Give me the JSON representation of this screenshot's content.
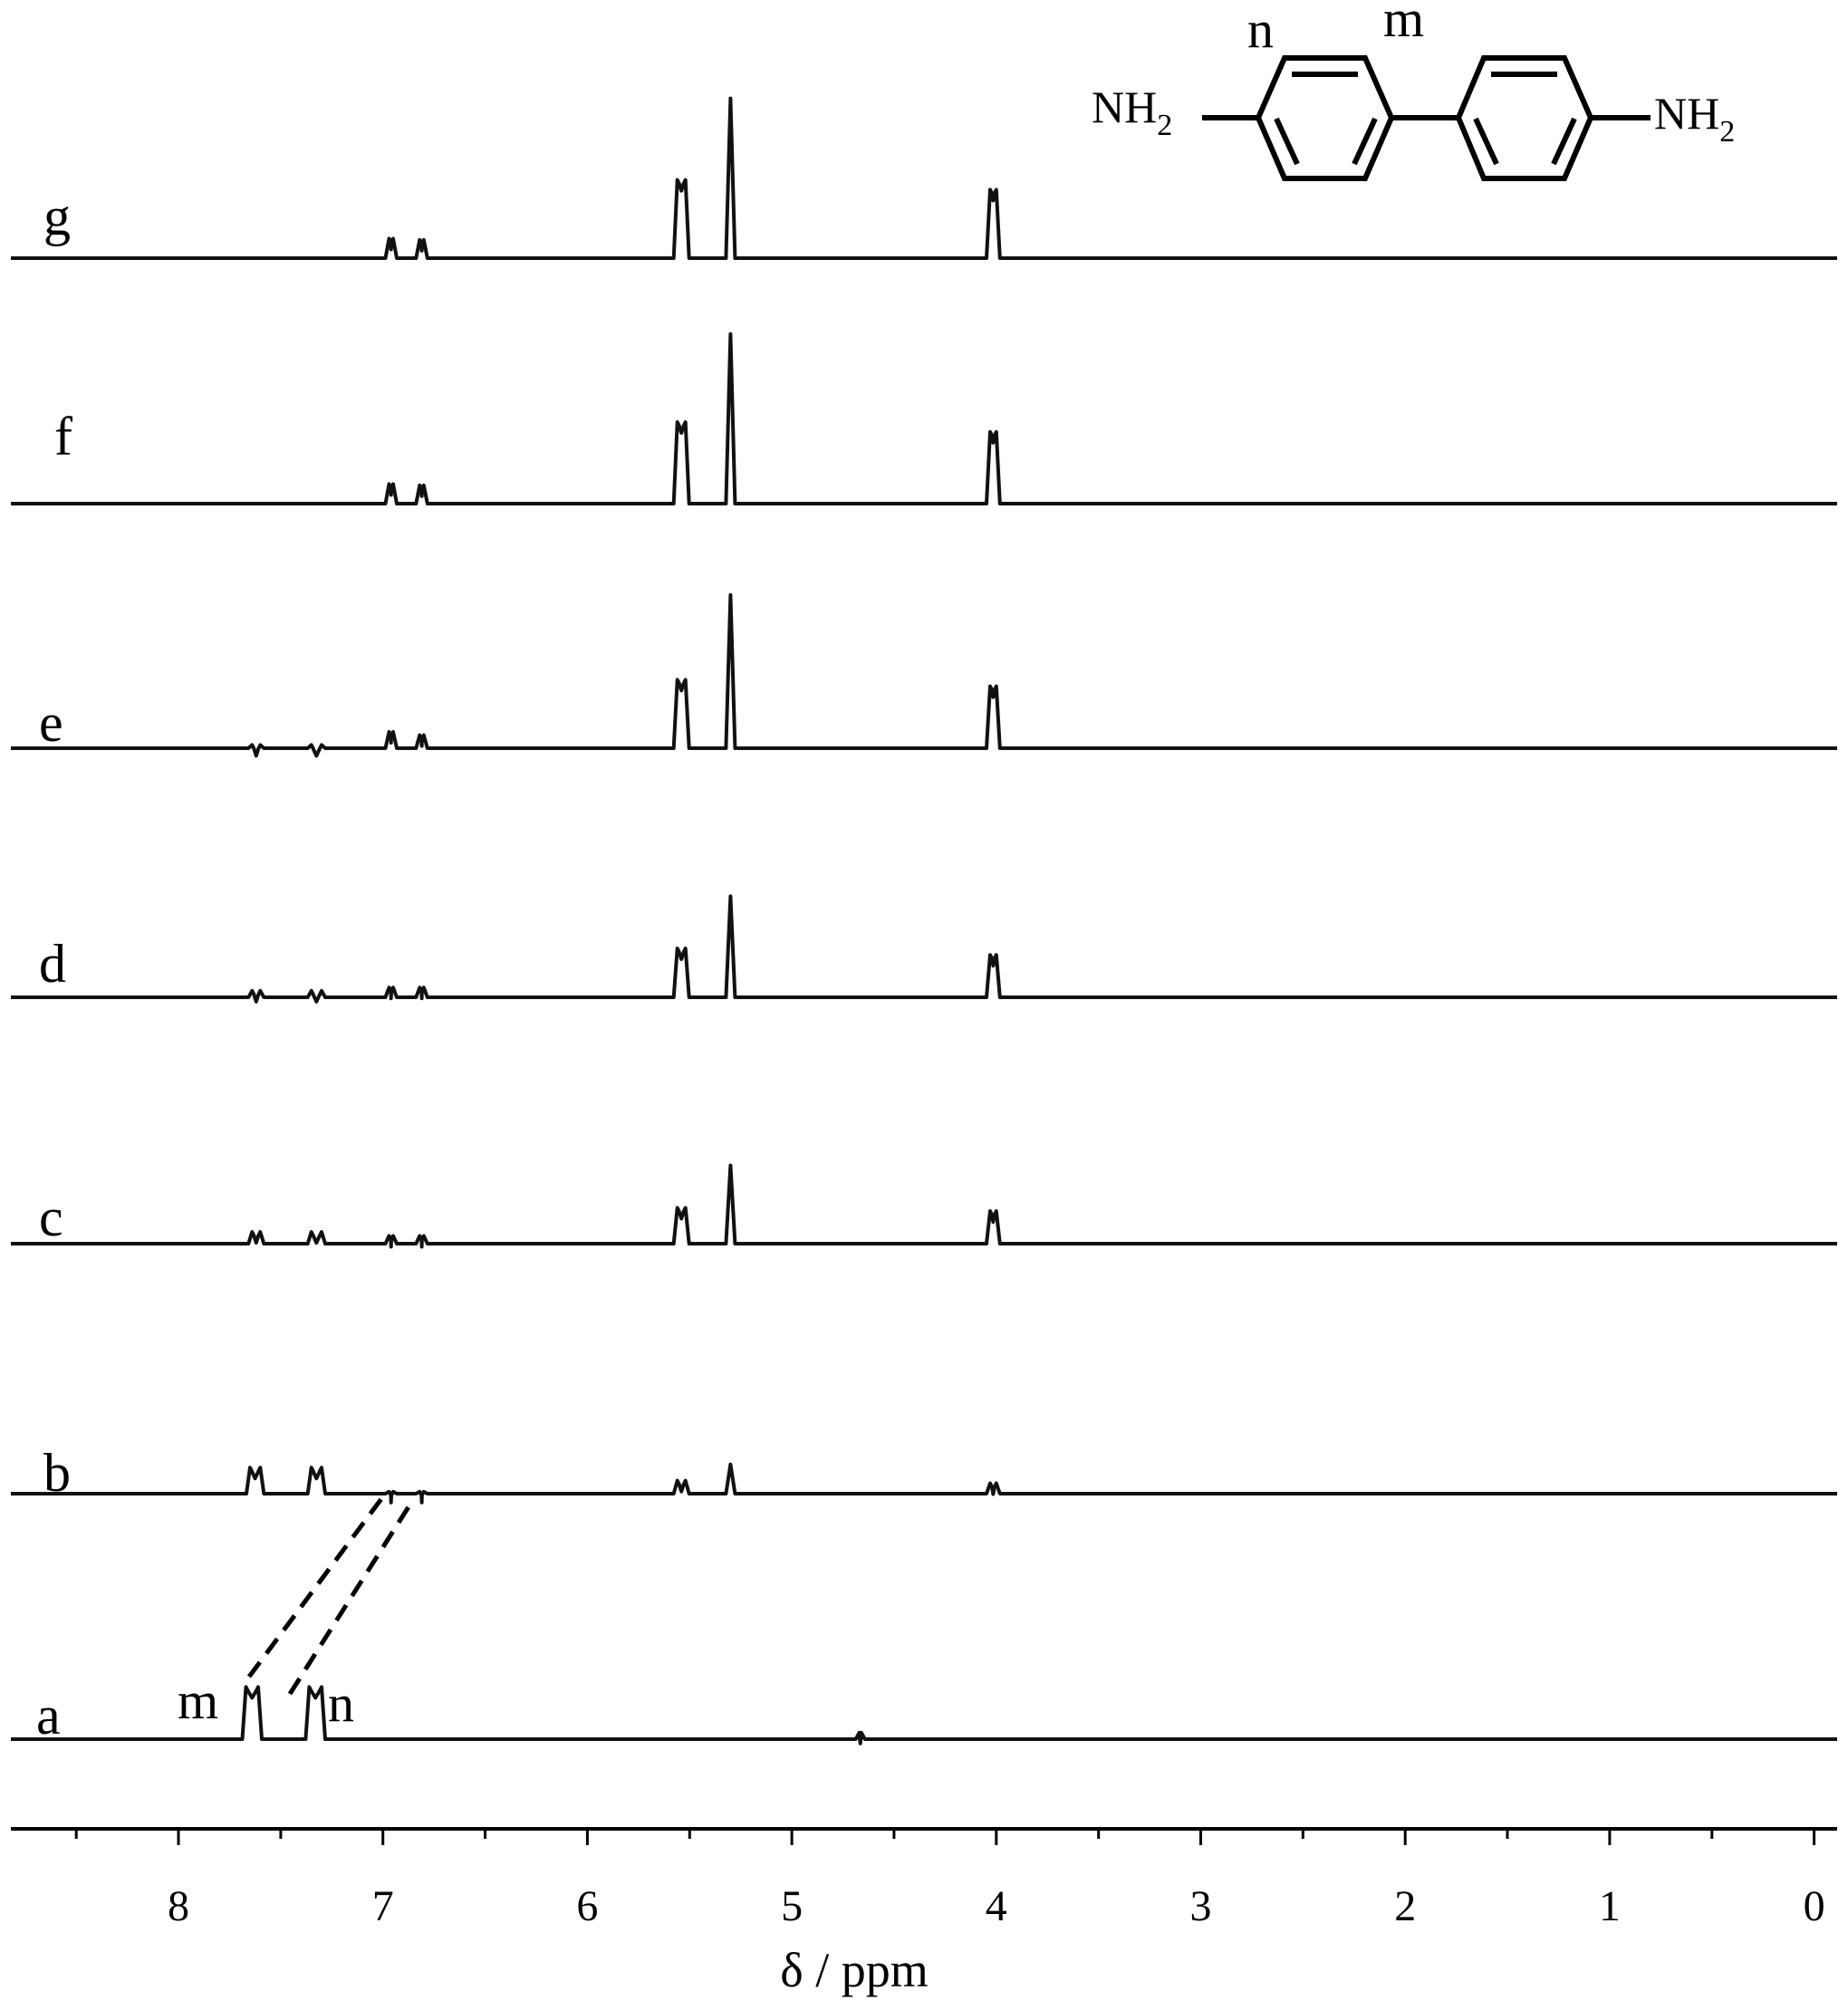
{
  "chart_data": {
    "type": "line",
    "title": "",
    "xlabel": "δ / ppm",
    "ylabel": "",
    "xlim": [
      8.8,
      -0.15
    ],
    "x_reversed": true,
    "x_ticks": [
      8,
      7,
      6,
      5,
      4,
      3,
      2,
      1,
      0
    ],
    "x_tick_labels": [
      "8",
      "7",
      "6",
      "5",
      "4",
      "3",
      "2",
      "1",
      "0"
    ],
    "grid": false,
    "legend": "none",
    "series": [
      {
        "name": "a",
        "peaks": [
          [
            7.67,
            7.61,
            0.8
          ],
          [
            7.36,
            7.3,
            0.8
          ],
          [
            4.67,
            4.66,
            0.1
          ]
        ]
      },
      {
        "name": "b",
        "peaks": [
          [
            7.65,
            7.6,
            0.4
          ],
          [
            7.35,
            7.3,
            0.4
          ],
          [
            6.97,
            6.95,
            0.03
          ],
          [
            6.82,
            6.8,
            0.03
          ],
          [
            5.56,
            5.52,
            0.2
          ],
          [
            5.3,
            5.3,
            0.45
          ],
          [
            4.03,
            4.0,
            0.16
          ]
        ]
      },
      {
        "name": "c",
        "peaks": [
          [
            7.64,
            7.6,
            0.18
          ],
          [
            7.35,
            7.3,
            0.18
          ],
          [
            6.97,
            6.95,
            0.12
          ],
          [
            6.82,
            6.8,
            0.12
          ],
          [
            5.56,
            5.52,
            0.55
          ],
          [
            5.3,
            5.3,
            1.2
          ],
          [
            4.03,
            4.0,
            0.5
          ]
        ]
      },
      {
        "name": "d",
        "peaks": [
          [
            7.64,
            7.6,
            0.1
          ],
          [
            7.35,
            7.3,
            0.1
          ],
          [
            6.97,
            6.95,
            0.15
          ],
          [
            6.82,
            6.8,
            0.15
          ],
          [
            5.56,
            5.52,
            0.75
          ],
          [
            5.3,
            5.3,
            1.55
          ],
          [
            4.03,
            4.0,
            0.65
          ]
        ]
      },
      {
        "name": "e",
        "peaks": [
          [
            7.64,
            7.6,
            0.05
          ],
          [
            7.35,
            7.3,
            0.05
          ],
          [
            6.97,
            6.95,
            0.25
          ],
          [
            6.82,
            6.8,
            0.2
          ],
          [
            5.56,
            5.52,
            1.05
          ],
          [
            5.3,
            5.3,
            2.35
          ],
          [
            4.03,
            4.0,
            0.95
          ]
        ]
      },
      {
        "name": "f",
        "peaks": [
          [
            6.97,
            6.95,
            0.3
          ],
          [
            6.82,
            6.8,
            0.28
          ],
          [
            5.56,
            5.52,
            1.25
          ],
          [
            5.3,
            5.3,
            2.6
          ],
          [
            4.03,
            4.0,
            1.1
          ]
        ]
      },
      {
        "name": "g",
        "peaks": [
          [
            6.97,
            6.95,
            0.3
          ],
          [
            6.82,
            6.8,
            0.28
          ],
          [
            5.56,
            5.52,
            1.2
          ],
          [
            5.3,
            5.3,
            2.45
          ],
          [
            4.03,
            4.0,
            1.05
          ]
        ]
      }
    ],
    "peak_annotations": [
      {
        "text": "m",
        "series": "a",
        "x": 7.64
      },
      {
        "text": "n",
        "series": "a",
        "x": 7.33
      }
    ],
    "structure_labels": {
      "nh2_left": "NH",
      "nh2_left_sub": "2",
      "nh2_right": "NH",
      "nh2_right_sub": "2",
      "n": "n",
      "m": "m"
    }
  }
}
